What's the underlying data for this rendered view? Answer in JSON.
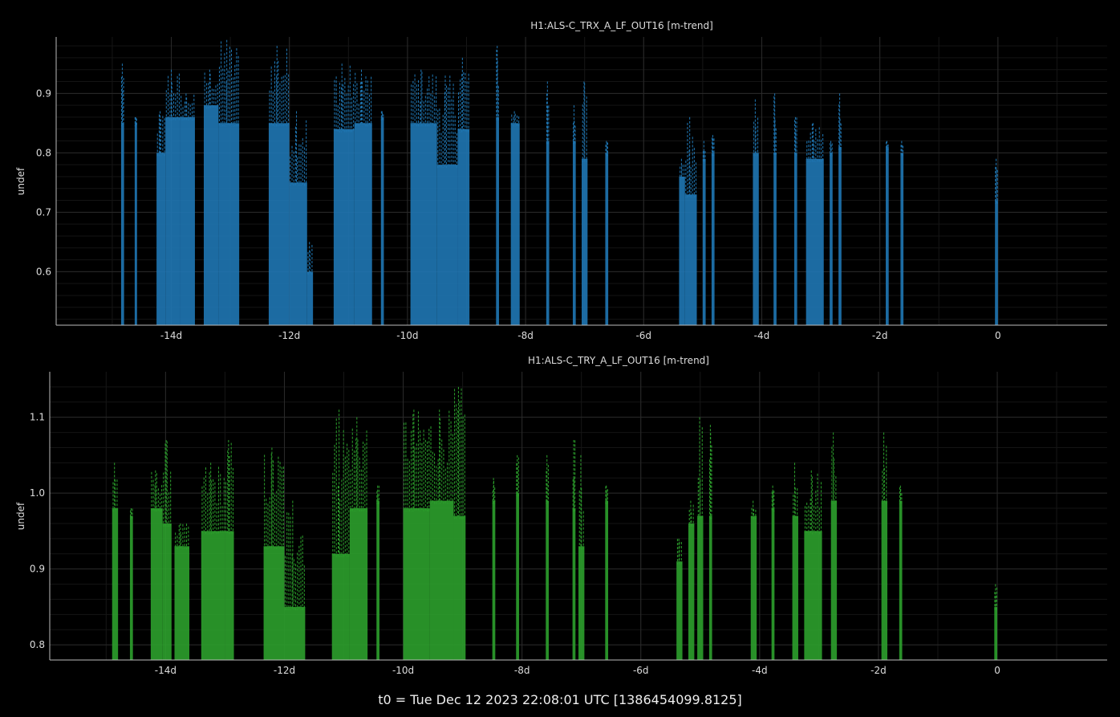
{
  "colors": {
    "background": "#000000",
    "series1": "#1f77b4",
    "series2": "#2ca02c",
    "grid": "#2a2a2a",
    "axis": "#bbbbbb",
    "text": "#dddddd"
  },
  "footer": {
    "t0_text": "t0 = Tue Dec 12 2023 22:08:01 UTC [1386454099.8125]"
  },
  "chart_data": [
    {
      "type": "line",
      "title": "H1:ALS-C_TRX_A_LF_OUT16 [m-trend]",
      "ylabel": "undef",
      "xlabel": "",
      "xlim": [
        -15.95,
        1.85
      ],
      "ylim": [
        0.51,
        0.995
      ],
      "x_ticks": [
        -14,
        -12,
        -10,
        -8,
        -6,
        -4,
        -2,
        0
      ],
      "x_tick_labels": [
        "-14d",
        "-12d",
        "-10d",
        "-8d",
        "-6d",
        "-4d",
        "-2d",
        "0"
      ],
      "y_ticks": [
        0.6,
        0.7,
        0.8,
        0.9
      ],
      "y_tick_labels": [
        "0.6",
        "0.7",
        "0.8",
        "0.9"
      ],
      "grid": true,
      "series": [
        {
          "color": "#1f77b4",
          "bursts": [
            {
              "x": [
                -14.85,
                -14.8
              ],
              "top": 0.85,
              "peak": 0.95
            },
            {
              "x": [
                -14.62,
                -14.58
              ],
              "top": 0.85,
              "peak": 0.86
            },
            {
              "x": [
                -14.25,
                -14.1
              ],
              "top": 0.8,
              "peak": 0.87
            },
            {
              "x": [
                -14.1,
                -13.85
              ],
              "top": 0.86,
              "peak": 0.94
            },
            {
              "x": [
                -13.85,
                -13.6
              ],
              "top": 0.86,
              "peak": 0.9
            },
            {
              "x": [
                -13.45,
                -13.2
              ],
              "top": 0.88,
              "peak": 0.94
            },
            {
              "x": [
                -13.2,
                -12.85
              ],
              "top": 0.85,
              "peak": 0.99
            },
            {
              "x": [
                -12.35,
                -12.0
              ],
              "top": 0.85,
              "peak": 0.98
            },
            {
              "x": [
                -12.0,
                -11.7
              ],
              "top": 0.75,
              "peak": 0.87
            },
            {
              "x": [
                -11.7,
                -11.6
              ],
              "top": 0.6,
              "peak": 0.65
            },
            {
              "x": [
                -11.25,
                -10.9
              ],
              "top": 0.84,
              "peak": 0.95
            },
            {
              "x": [
                -10.9,
                -10.6
              ],
              "top": 0.85,
              "peak": 0.94
            },
            {
              "x": [
                -10.45,
                -10.4
              ],
              "top": 0.86,
              "peak": 0.87
            },
            {
              "x": [
                -9.95,
                -9.5
              ],
              "top": 0.85,
              "peak": 0.94
            },
            {
              "x": [
                -9.5,
                -9.15
              ],
              "top": 0.78,
              "peak": 0.93
            },
            {
              "x": [
                -9.15,
                -8.95
              ],
              "top": 0.84,
              "peak": 0.96
            },
            {
              "x": [
                -8.5,
                -8.45
              ],
              "top": 0.86,
              "peak": 0.98
            },
            {
              "x": [
                -8.25,
                -8.1
              ],
              "top": 0.85,
              "peak": 0.87
            },
            {
              "x": [
                -7.65,
                -7.6
              ],
              "top": 0.82,
              "peak": 0.92
            },
            {
              "x": [
                -7.2,
                -7.15
              ],
              "top": 0.82,
              "peak": 0.88
            },
            {
              "x": [
                -7.05,
                -6.95
              ],
              "top": 0.79,
              "peak": 0.92
            },
            {
              "x": [
                -6.65,
                -6.6
              ],
              "top": 0.8,
              "peak": 0.82
            },
            {
              "x": [
                -5.4,
                -5.3
              ],
              "top": 0.76,
              "peak": 0.79
            },
            {
              "x": [
                -5.3,
                -5.1
              ],
              "top": 0.73,
              "peak": 0.86
            },
            {
              "x": [
                -5.0,
                -4.95
              ],
              "top": 0.79,
              "peak": 0.82
            },
            {
              "x": [
                -4.85,
                -4.8
              ],
              "top": 0.8,
              "peak": 0.83
            },
            {
              "x": [
                -4.15,
                -4.05
              ],
              "top": 0.8,
              "peak": 0.89
            },
            {
              "x": [
                -3.8,
                -3.75
              ],
              "top": 0.8,
              "peak": 0.9
            },
            {
              "x": [
                -3.45,
                -3.4
              ],
              "top": 0.8,
              "peak": 0.86
            },
            {
              "x": [
                -3.25,
                -2.95
              ],
              "top": 0.79,
              "peak": 0.85
            },
            {
              "x": [
                -2.85,
                -2.8
              ],
              "top": 0.8,
              "peak": 0.82
            },
            {
              "x": [
                -2.7,
                -2.65
              ],
              "top": 0.81,
              "peak": 0.9
            },
            {
              "x": [
                -1.9,
                -1.85
              ],
              "top": 0.81,
              "peak": 0.82
            },
            {
              "x": [
                -1.65,
                -1.6
              ],
              "top": 0.8,
              "peak": 0.82
            },
            {
              "x": [
                -0.05,
                0.0
              ],
              "top": 0.72,
              "peak": 0.79
            }
          ]
        }
      ]
    },
    {
      "type": "line",
      "title": "H1:ALS-C_TRY_A_LF_OUT16 [m-trend]",
      "ylabel": "undef",
      "xlabel": "",
      "xlim": [
        -15.95,
        1.85
      ],
      "ylim": [
        0.78,
        1.16
      ],
      "x_ticks": [
        -14,
        -12,
        -10,
        -8,
        -6,
        -4,
        -2,
        0
      ],
      "x_tick_labels": [
        "-14d",
        "-12d",
        "-10d",
        "-8d",
        "-6d",
        "-4d",
        "-2d",
        "0"
      ],
      "y_ticks": [
        0.8,
        0.9,
        1.0,
        1.1
      ],
      "y_tick_labels": [
        "0.8",
        "0.9",
        "1.0",
        "1.1"
      ],
      "grid": true,
      "series": [
        {
          "color": "#2ca02c",
          "bursts": [
            {
              "x": [
                -14.9,
                -14.8
              ],
              "top": 0.98,
              "peak": 1.04
            },
            {
              "x": [
                -14.6,
                -14.55
              ],
              "top": 0.97,
              "peak": 0.98
            },
            {
              "x": [
                -14.25,
                -14.05
              ],
              "top": 0.98,
              "peak": 1.03
            },
            {
              "x": [
                -14.05,
                -13.9
              ],
              "top": 0.96,
              "peak": 1.07
            },
            {
              "x": [
                -13.85,
                -13.6
              ],
              "top": 0.93,
              "peak": 0.96
            },
            {
              "x": [
                -13.4,
                -13.0
              ],
              "top": 0.95,
              "peak": 1.04
            },
            {
              "x": [
                -13.0,
                -12.85
              ],
              "top": 0.95,
              "peak": 1.07
            },
            {
              "x": [
                -12.35,
                -12.0
              ],
              "top": 0.93,
              "peak": 1.06
            },
            {
              "x": [
                -12.0,
                -11.65
              ],
              "top": 0.85,
              "peak": 0.99
            },
            {
              "x": [
                -11.2,
                -10.9
              ],
              "top": 0.92,
              "peak": 1.11
            },
            {
              "x": [
                -10.9,
                -10.6
              ],
              "top": 0.98,
              "peak": 1.1
            },
            {
              "x": [
                -10.45,
                -10.4
              ],
              "top": 0.99,
              "peak": 1.01
            },
            {
              "x": [
                -10.0,
                -9.55
              ],
              "top": 0.98,
              "peak": 1.11
            },
            {
              "x": [
                -9.55,
                -9.15
              ],
              "top": 0.99,
              "peak": 1.11
            },
            {
              "x": [
                -9.15,
                -8.95
              ],
              "top": 0.97,
              "peak": 1.14
            },
            {
              "x": [
                -8.5,
                -8.45
              ],
              "top": 0.99,
              "peak": 1.02
            },
            {
              "x": [
                -8.1,
                -8.05
              ],
              "top": 1.0,
              "peak": 1.05
            },
            {
              "x": [
                -7.6,
                -7.55
              ],
              "top": 0.99,
              "peak": 1.05
            },
            {
              "x": [
                -7.15,
                -7.1
              ],
              "top": 0.98,
              "peak": 1.07
            },
            {
              "x": [
                -7.05,
                -6.95
              ],
              "top": 0.93,
              "peak": 1.05
            },
            {
              "x": [
                -6.6,
                -6.55
              ],
              "top": 0.99,
              "peak": 1.01
            },
            {
              "x": [
                -5.4,
                -5.3
              ],
              "top": 0.91,
              "peak": 0.94
            },
            {
              "x": [
                -5.2,
                -5.1
              ],
              "top": 0.96,
              "peak": 0.99
            },
            {
              "x": [
                -5.05,
                -4.95
              ],
              "top": 0.97,
              "peak": 1.1
            },
            {
              "x": [
                -4.85,
                -4.8
              ],
              "top": 0.97,
              "peak": 1.09
            },
            {
              "x": [
                -4.15,
                -4.05
              ],
              "top": 0.97,
              "peak": 0.99
            },
            {
              "x": [
                -3.8,
                -3.75
              ],
              "top": 0.98,
              "peak": 1.01
            },
            {
              "x": [
                -3.45,
                -3.35
              ],
              "top": 0.97,
              "peak": 1.04
            },
            {
              "x": [
                -3.25,
                -2.95
              ],
              "top": 0.95,
              "peak": 1.03
            },
            {
              "x": [
                -2.8,
                -2.7
              ],
              "top": 0.99,
              "peak": 1.08
            },
            {
              "x": [
                -1.95,
                -1.85
              ],
              "top": 0.99,
              "peak": 1.08
            },
            {
              "x": [
                -1.65,
                -1.6
              ],
              "top": 0.99,
              "peak": 1.01
            },
            {
              "x": [
                -0.05,
                0.0
              ],
              "top": 0.85,
              "peak": 0.88
            }
          ]
        }
      ]
    }
  ]
}
